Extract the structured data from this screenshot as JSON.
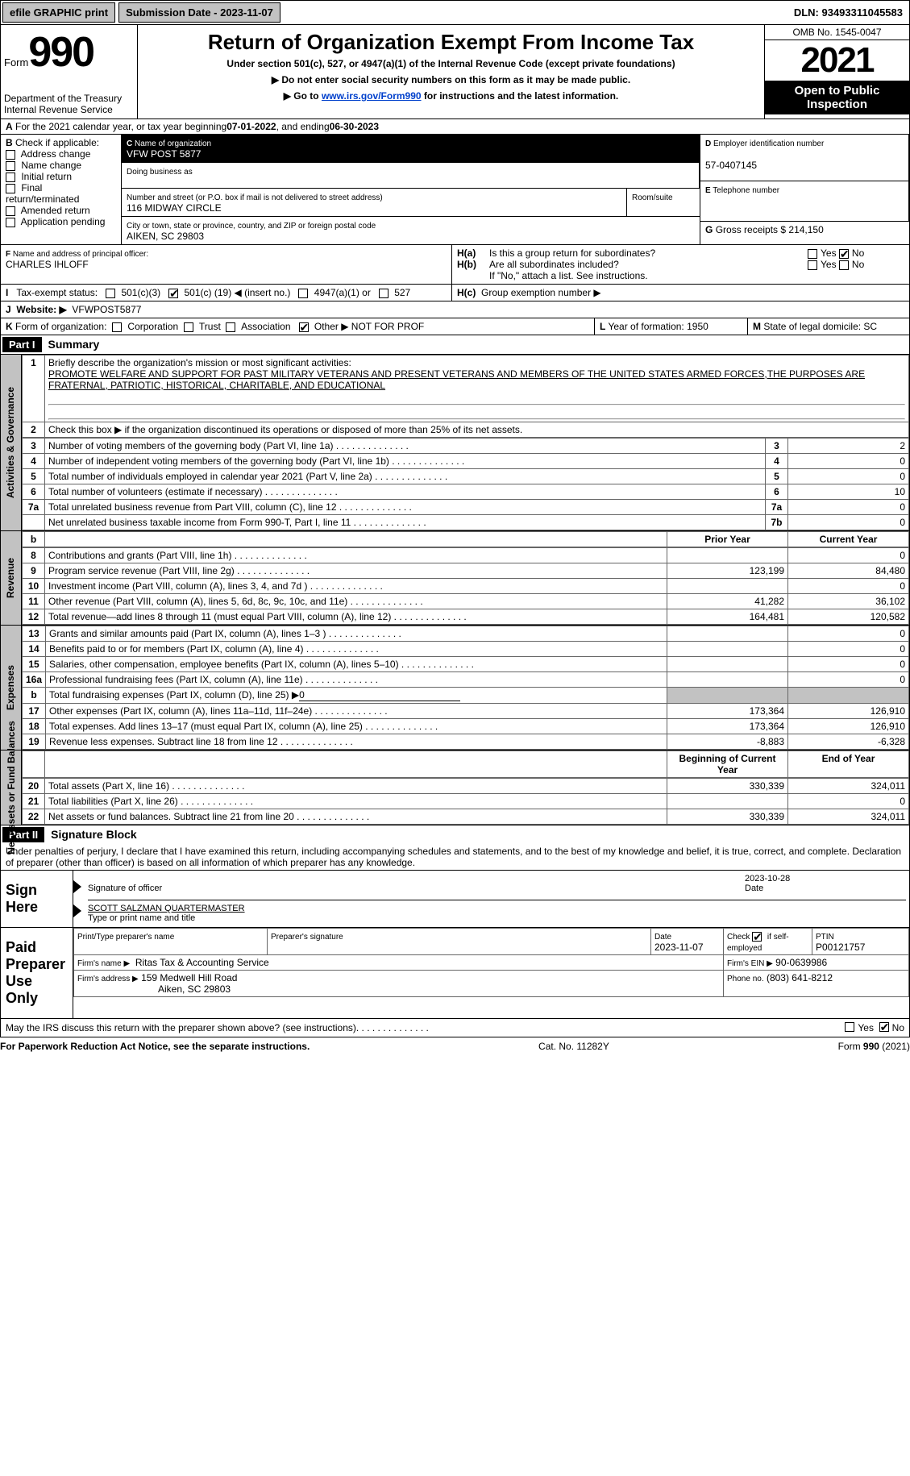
{
  "topbar": {
    "efile": "efile GRAPHIC print",
    "submission_label": "Submission Date - 2023-11-07",
    "dln_label": "DLN: 93493311045583"
  },
  "header": {
    "form_word": "Form",
    "form_num": "990",
    "dept": "Department of the Treasury",
    "irs": "Internal Revenue Service",
    "title": "Return of Organization Exempt From Income Tax",
    "subtitle": "Under section 501(c), 527, or 4947(a)(1) of the Internal Revenue Code (except private foundations)",
    "hint1": "▶ Do not enter social security numbers on this form as it may be made public.",
    "hint2_a": "▶ Go to ",
    "hint2_link": "www.irs.gov/Form990",
    "hint2_b": " for instructions and the latest information.",
    "omb": "OMB No. 1545-0047",
    "year": "2021",
    "open1": "Open to Public",
    "open2": "Inspection"
  },
  "A": {
    "text_a": "For the 2021 calendar year, or tax year beginning ",
    "date1": "07-01-2022",
    "mid": ", and ending ",
    "date2": "06-30-2023"
  },
  "B": {
    "label": "Check if applicable:",
    "opts": [
      "Address change",
      "Name change",
      "Initial return",
      "Final return/terminated",
      "Amended return",
      "Application pending"
    ]
  },
  "C": {
    "label": "Name of organization",
    "name": "VFW POST 5877",
    "dba_label": "Doing business as",
    "addr_label": "Number and street (or P.O. box if mail is not delivered to street address)",
    "room_label": "Room/suite",
    "addr": "116 MIDWAY CIRCLE",
    "city_label": "City or town, state or province, country, and ZIP or foreign postal code",
    "city": "AIKEN, SC  29803"
  },
  "D": {
    "label": "Employer identification number",
    "val": "57-0407145"
  },
  "E": {
    "label": "Telephone number"
  },
  "F": {
    "label": "Name and address of principal officer:",
    "name": "CHARLES IHLOFF"
  },
  "G": {
    "label": "Gross receipts $",
    "val": "214,150"
  },
  "H": {
    "a": "Is this a group return for subordinates?",
    "b": "Are all subordinates included?",
    "bnote": "If \"No,\" attach a list. See instructions.",
    "c": "Group exemption number ▶",
    "yes": "Yes",
    "no": "No"
  },
  "I": {
    "label": "Tax-exempt status:",
    "o1": "501(c)(3)",
    "o2a": "501(c) (",
    "o2b": "19",
    "o2c": ") ◀ (insert no.)",
    "o3": "4947(a)(1) or",
    "o4": "527"
  },
  "J": {
    "label": "Website: ▶",
    "val": "VFWPOST5877"
  },
  "K": {
    "label": "Form of organization:",
    "opts": [
      "Corporation",
      "Trust",
      "Association"
    ],
    "other": "Other ▶",
    "other_val": "NOT FOR PROF"
  },
  "L": {
    "label": "Year of formation:",
    "val": "1950"
  },
  "M": {
    "label": "State of legal domicile:",
    "val": "SC"
  },
  "part1": {
    "label": "Part I",
    "title": "Summary"
  },
  "summary": {
    "l1_label": "Briefly describe the organization's mission or most significant activities:",
    "l1_text": "PROMOTE WELFARE AND SUPPORT FOR PAST MILITARY VETERANS AND PRESENT VETERANS AND MEMBERS OF THE UNITED STATES ARMED FORCES,THE PURPOSES ARE FRATERNAL, PATRIOTIC, HISTORICAL, CHARITABLE, AND EDUCATIONAL",
    "l2": "Check this box ▶      if the organization discontinued its operations or disposed of more than 25% of its net assets.",
    "rows_small": [
      {
        "n": "3",
        "t": "Number of voting members of the governing body (Part VI, line 1a)",
        "b": "3",
        "v": "2"
      },
      {
        "n": "4",
        "t": "Number of independent voting members of the governing body (Part VI, line 1b)",
        "b": "4",
        "v": "0"
      },
      {
        "n": "5",
        "t": "Total number of individuals employed in calendar year 2021 (Part V, line 2a)",
        "b": "5",
        "v": "0"
      },
      {
        "n": "6",
        "t": "Total number of volunteers (estimate if necessary)",
        "b": "6",
        "v": "10"
      },
      {
        "n": "7a",
        "t": "Total unrelated business revenue from Part VIII, column (C), line 12",
        "b": "7a",
        "v": "0"
      },
      {
        "n": "",
        "t": "Net unrelated business taxable income from Form 990-T, Part I, line 11",
        "b": "7b",
        "v": "0"
      }
    ],
    "col_prior": "Prior Year",
    "col_current": "Current Year",
    "revenue": [
      {
        "n": "8",
        "t": "Contributions and grants (Part VIII, line 1h)",
        "p": "",
        "c": "0"
      },
      {
        "n": "9",
        "t": "Program service revenue (Part VIII, line 2g)",
        "p": "123,199",
        "c": "84,480"
      },
      {
        "n": "10",
        "t": "Investment income (Part VIII, column (A), lines 3, 4, and 7d )",
        "p": "",
        "c": "0"
      },
      {
        "n": "11",
        "t": "Other revenue (Part VIII, column (A), lines 5, 6d, 8c, 9c, 10c, and 11e)",
        "p": "41,282",
        "c": "36,102"
      },
      {
        "n": "12",
        "t": "Total revenue—add lines 8 through 11 (must equal Part VIII, column (A), line 12)",
        "p": "164,481",
        "c": "120,582"
      }
    ],
    "expenses": [
      {
        "n": "13",
        "t": "Grants and similar amounts paid (Part IX, column (A), lines 1–3 )",
        "p": "",
        "c": "0"
      },
      {
        "n": "14",
        "t": "Benefits paid to or for members (Part IX, column (A), line 4)",
        "p": "",
        "c": "0"
      },
      {
        "n": "15",
        "t": "Salaries, other compensation, employee benefits (Part IX, column (A), lines 5–10)",
        "p": "",
        "c": "0"
      },
      {
        "n": "16a",
        "t": "Professional fundraising fees (Part IX, column (A), line 11e)",
        "p": "",
        "c": "0"
      },
      {
        "n": "b",
        "t": "Total fundraising expenses (Part IX, column (D), line 25) ▶",
        "fund": "0",
        "shade": true
      },
      {
        "n": "17",
        "t": "Other expenses (Part IX, column (A), lines 11a–11d, 11f–24e)",
        "p": "173,364",
        "c": "126,910"
      },
      {
        "n": "18",
        "t": "Total expenses. Add lines 13–17 (must equal Part IX, column (A), line 25)",
        "p": "173,364",
        "c": "126,910"
      },
      {
        "n": "19",
        "t": "Revenue less expenses. Subtract line 18 from line 12",
        "p": "-8,883",
        "c": "-6,328"
      }
    ],
    "col_begin": "Beginning of Current Year",
    "col_end": "End of Year",
    "netassets": [
      {
        "n": "20",
        "t": "Total assets (Part X, line 16)",
        "p": "330,339",
        "c": "324,011"
      },
      {
        "n": "21",
        "t": "Total liabilities (Part X, line 26)",
        "p": "",
        "c": "0"
      },
      {
        "n": "22",
        "t": "Net assets or fund balances. Subtract line 21 from line 20",
        "p": "330,339",
        "c": "324,011"
      }
    ],
    "vside1": "Activities & Governance",
    "vside2": "Revenue",
    "vside3": "Expenses",
    "vside4": "Net Assets or Fund Balances"
  },
  "part2": {
    "label": "Part II",
    "title": "Signature Block",
    "penalty": "Under penalties of perjury, I declare that I have examined this return, including accompanying schedules and statements, and to the best of my knowledge and belief, it is true, correct, and complete. Declaration of preparer (other than officer) is based on all information of which preparer has any knowledge."
  },
  "sign": {
    "here": "Sign Here",
    "sig_of": "Signature of officer",
    "date_lbl": "Date",
    "date": "2023-10-28",
    "name": "SCOTT SALZMAN  QUARTERMASTER",
    "name_lbl": "Type or print name and title"
  },
  "paid": {
    "label": "Paid Preparer Use Only",
    "h1": "Print/Type preparer's name",
    "h2": "Preparer's signature",
    "h3l": "Date",
    "h3": "2023-11-07",
    "h4a": "Check",
    "h4b": "if self-employed",
    "h5l": "PTIN",
    "h5": "P00121757",
    "firm_name_l": "Firm's name   ▶",
    "firm_name": "Ritas Tax & Accounting Service",
    "firm_ein_l": "Firm's EIN ▶",
    "firm_ein": "90-0639986",
    "firm_addr_l": "Firm's address ▶",
    "firm_addr1": "159 Medwell Hill Road",
    "firm_addr2": "Aiken, SC  29803",
    "phone_l": "Phone no.",
    "phone": "(803) 641-8212"
  },
  "discuss": {
    "text": "May the IRS discuss this return with the preparer shown above? (see instructions)",
    "yes": "Yes",
    "no": "No"
  },
  "foot": {
    "a": "For Paperwork Reduction Act Notice, see the separate instructions.",
    "b": "Cat. No. 11282Y",
    "c": "Form 990 (2021)"
  }
}
